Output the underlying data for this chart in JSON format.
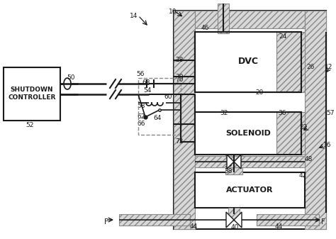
{
  "bg_color": "#ffffff",
  "fig_width": 4.74,
  "fig_height": 3.37,
  "dpi": 100,
  "labels": {
    "shutdown_controller": "SHUTDOWN\nCONTROLLER",
    "dvc": "DVC",
    "solenoid": "SOLENOID",
    "actuator": "ACTUATOR"
  },
  "black": "#1a1a1a",
  "gray": "#888888",
  "hatch_fc": "#d8d8d8"
}
